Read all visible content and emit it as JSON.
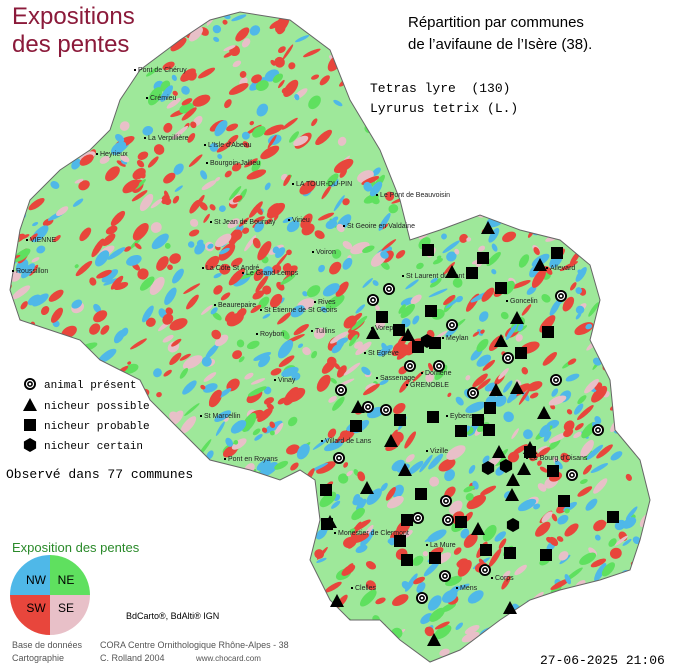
{
  "map_title": {
    "line1": "Expositions",
    "line2": "des pentes"
  },
  "distribution_title": {
    "line1": "Répartition par communes",
    "line2": "de l’avifaune de l’Isère (38)."
  },
  "species": {
    "common_name": "Tetras lyre  (130)",
    "latin_name": "Lyrurus tetrix (L.)"
  },
  "legend": {
    "items": [
      "animal présent",
      "nicheur possible",
      "nicheur probable",
      "nicheur certain"
    ]
  },
  "observed": "Observé dans 77 communes",
  "exposure_legend": {
    "title": "Exposition des pentes",
    "quadrants": [
      "NW",
      "NE",
      "SW",
      "SE"
    ]
  },
  "credits": {
    "sources": "BdCarto®, BdAlti® IGN",
    "database_label": "Base de données",
    "database": "CORA Centre Ornithologique Rhône-Alpes - 38",
    "cartography_label": "Cartographie",
    "cartographer": "C. Rolland 2004",
    "website": "www.chocard.com"
  },
  "timestamp": "27-06-2025 21:06",
  "places": [
    "Pont de Chéruy",
    "Crémieu",
    "Heyrieux",
    "La Verpillière",
    "L'Isle d'Abeau",
    "Bourgoin-Jallieu",
    "LA TOUR-DU-PIN",
    "VIENNE",
    "Le Pont de Beauvoisin",
    "St Jean de Bournay",
    "Virieu",
    "St Geoire en Valdaine",
    "La Côte St André",
    "Le Grand Lemps",
    "St Laurent du Pont",
    "Roussillon",
    "Rives",
    "Voiron",
    "Beaurepaire",
    "St Etienne de St Geoirs",
    "Tullins",
    "Roybon",
    "Vinay",
    "St Marcellin",
    "Pont en Royans",
    "GRENOBLE",
    "Villard de Lans",
    "Vizille",
    "Le Bourg d'Oisans",
    "Monestier de Clermont",
    "La Mure",
    "Mens",
    "Corps",
    "Clelles",
    "Allevard",
    "Goncelin",
    "Domène",
    "Meylan",
    "Eybens",
    "St Egrève",
    "Voreppe",
    "Sassenage"
  ]
}
